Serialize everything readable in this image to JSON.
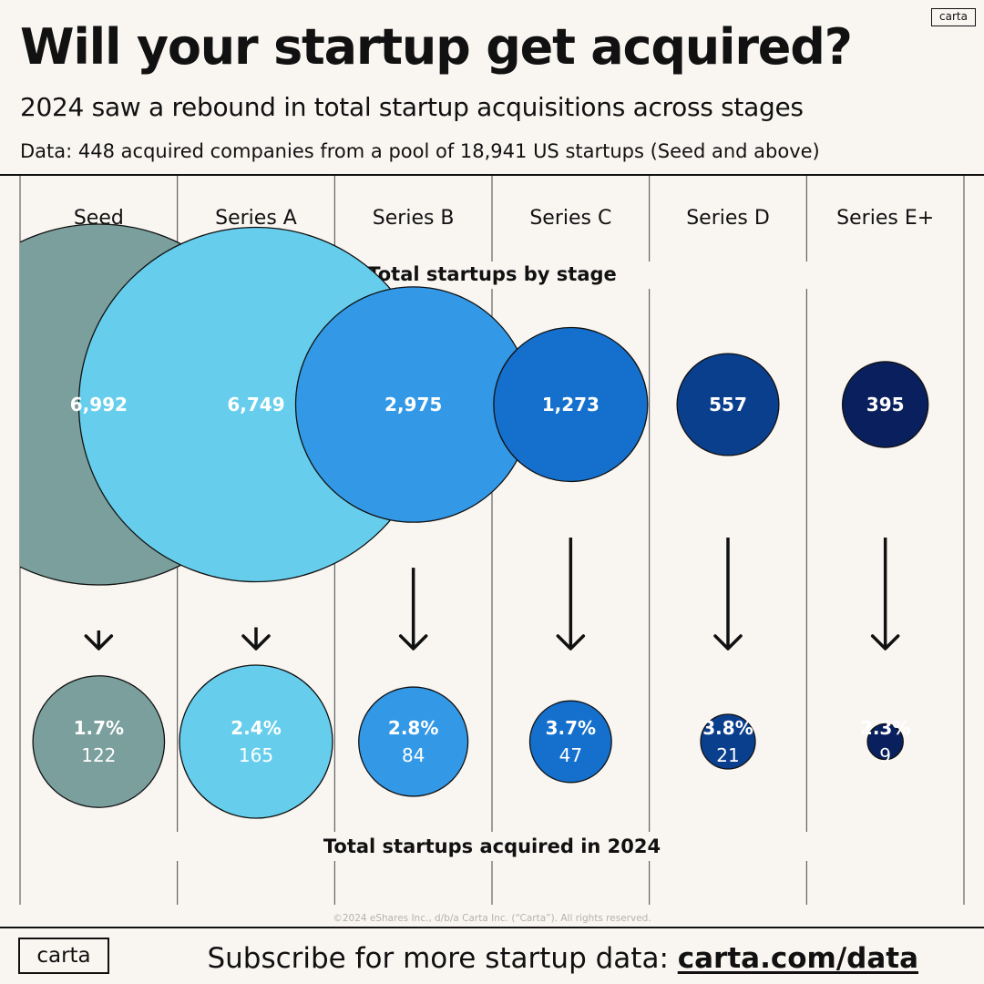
{
  "header": {
    "logo": "carta",
    "title": "Will your startup get acquired?",
    "subtitle": "2024 saw a rebound in total startup acquisitions across stages",
    "source": "Data: 448 acquired companies from a pool of 18,941 US startups (Seed and above)"
  },
  "chart_data": {
    "type": "bubble",
    "categories": [
      "Seed",
      "Series A",
      "Series B",
      "Series C",
      "Series D",
      "Series E+"
    ],
    "series": [
      {
        "name": "Total startups by stage",
        "values": [
          6992,
          6749,
          2975,
          1273,
          557,
          395
        ],
        "labels": [
          "6,992",
          "6,749",
          "2,975",
          "1,273",
          "557",
          "395"
        ]
      },
      {
        "name": "Total startups acquired in 2024",
        "values": [
          122,
          165,
          84,
          47,
          21,
          9
        ],
        "labels": [
          "122",
          "165",
          "84",
          "47",
          "21",
          "9"
        ],
        "percent_labels": [
          "1.7%",
          "2.4%",
          "2.8%",
          "3.7%",
          "3.8%",
          "2.3%"
        ]
      }
    ],
    "colors": [
      "#7a9f9c",
      "#66ceec",
      "#3399e6",
      "#1470cc",
      "#0a3f8e",
      "#0a1f5e"
    ],
    "outline_color": "#111111"
  },
  "copyright": "©2024 eShares Inc., d/b/a Carta Inc. (“Carta”). All rights reserved.",
  "footer": {
    "logo": "carta",
    "cta_text": "Subscribe for more startup data: ",
    "cta_link": "carta.com/data"
  }
}
